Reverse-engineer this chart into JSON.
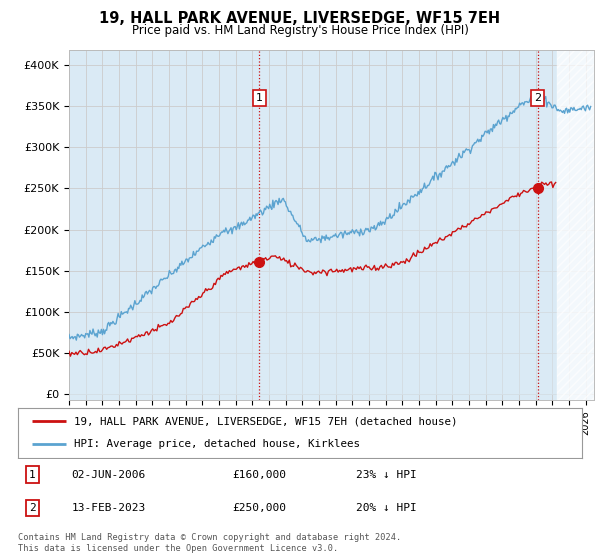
{
  "title": "19, HALL PARK AVENUE, LIVERSEDGE, WF15 7EH",
  "subtitle": "Price paid vs. HM Land Registry's House Price Index (HPI)",
  "title_fontsize": 10.5,
  "subtitle_fontsize": 8.5,
  "yticks": [
    0,
    50000,
    100000,
    150000,
    200000,
    250000,
    300000,
    350000,
    400000
  ],
  "ytick_labels": [
    "£0",
    "£50K",
    "£100K",
    "£150K",
    "£200K",
    "£250K",
    "£300K",
    "£350K",
    "£400K"
  ],
  "ylim": [
    -8000,
    418000
  ],
  "xlim_start": 1995.0,
  "xlim_end": 2026.5,
  "xticks": [
    1995,
    1996,
    1997,
    1998,
    1999,
    2000,
    2001,
    2002,
    2003,
    2004,
    2005,
    2006,
    2007,
    2008,
    2009,
    2010,
    2011,
    2012,
    2013,
    2014,
    2015,
    2016,
    2017,
    2018,
    2019,
    2020,
    2021,
    2022,
    2023,
    2024,
    2025,
    2026
  ],
  "hpi_color": "#5ba3d0",
  "hpi_fill_color": "#daeaf5",
  "price_color": "#cc1111",
  "vline_color": "#cc1111",
  "vline_style": ":",
  "marker1_date": 2006.42,
  "marker1_price": 160000,
  "marker2_date": 2023.12,
  "marker2_price": 250000,
  "legend_line1": "19, HALL PARK AVENUE, LIVERSEDGE, WF15 7EH (detached house)",
  "legend_line2": "HPI: Average price, detached house, Kirklees",
  "annotation1_label": "1",
  "annotation1_date": "02-JUN-2006",
  "annotation1_price": "£160,000",
  "annotation1_hpi": "23% ↓ HPI",
  "annotation2_label": "2",
  "annotation2_date": "13-FEB-2023",
  "annotation2_price": "£250,000",
  "annotation2_hpi": "20% ↓ HPI",
  "footer": "Contains HM Land Registry data © Crown copyright and database right 2024.\nThis data is licensed under the Open Government Licence v3.0.",
  "background_color": "#ffffff",
  "grid_color": "#cccccc"
}
